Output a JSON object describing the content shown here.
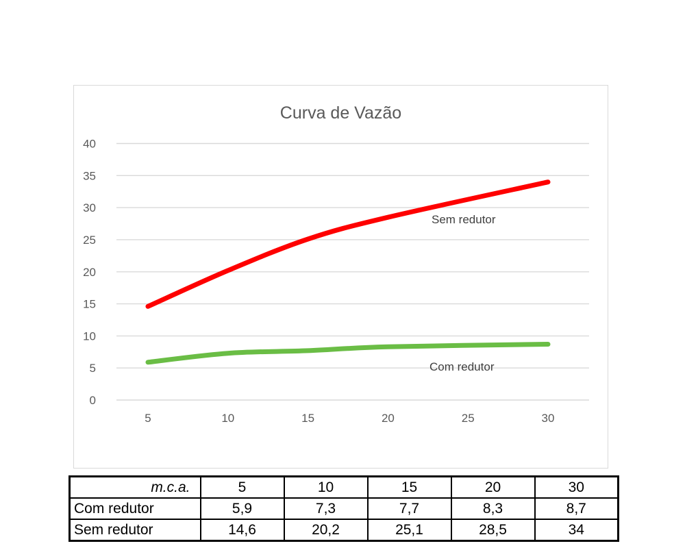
{
  "chart_data": {
    "type": "line",
    "title": "Curva de Vazão",
    "x": [
      5,
      10,
      15,
      20,
      30
    ],
    "series": [
      {
        "name": "Sem redutor",
        "values": [
          14.6,
          20.2,
          25.1,
          28.5,
          34
        ],
        "color": "#fe0000"
      },
      {
        "name": "Com redutor",
        "values": [
          5.9,
          7.3,
          7.7,
          8.3,
          8.7
        ],
        "color": "#6abd45"
      }
    ],
    "xlabel": "",
    "ylabel": "",
    "xlim": [
      5,
      30
    ],
    "ylim": [
      0,
      40
    ],
    "x_ticks": [
      5,
      10,
      15,
      20,
      25,
      30
    ],
    "y_ticks": [
      0,
      5,
      10,
      15,
      20,
      25,
      30,
      35,
      40
    ],
    "grid": "horizontal",
    "legend": "inline-labels",
    "smooth_lines": true,
    "line_width": 7
  },
  "table": {
    "header_label": "m.c.a.",
    "header_values": [
      "5",
      "10",
      "15",
      "20",
      "30"
    ],
    "rows": [
      {
        "label": "Com redutor",
        "values": [
          "5,9",
          "7,3",
          "7,7",
          "8,3",
          "8,7"
        ]
      },
      {
        "label": "Sem redutor",
        "values": [
          "14,6",
          "20,2",
          "25,1",
          "28,5",
          "34"
        ]
      }
    ]
  },
  "colors": {
    "chart_text": "#595959",
    "series_label_text": "#3f3f3f",
    "gridline": "#d9d9d9",
    "chart_border": "#d9d9d9",
    "table_border": "#000000",
    "table_text": "#000000",
    "background": "#ffffff"
  }
}
